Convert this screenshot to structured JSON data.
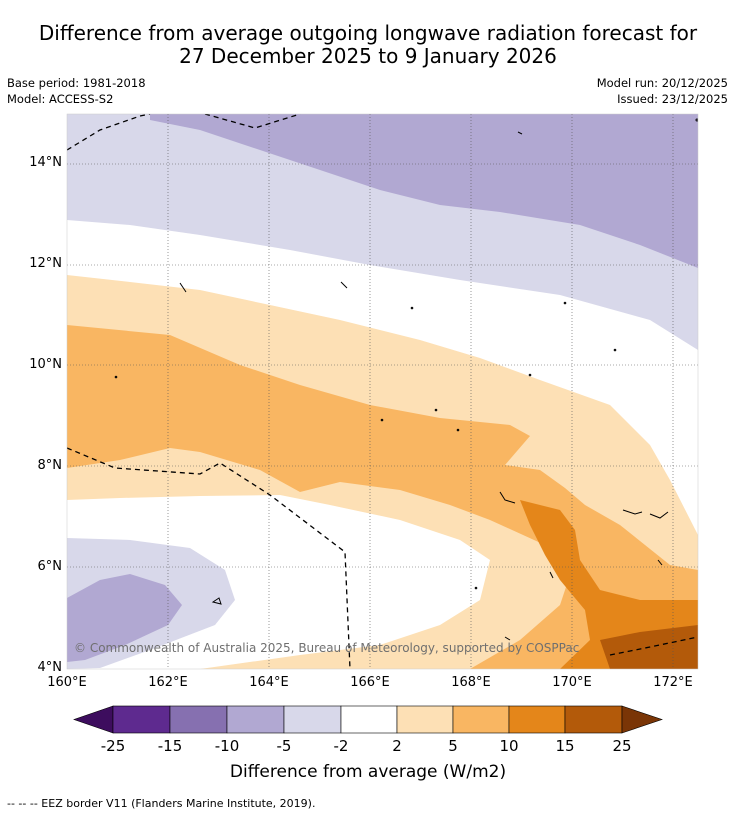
{
  "title_line1": "Difference from average outgoing longwave radiation forecast for",
  "title_line2": "27 December 2025 to 9 January 2026",
  "base_period": "Base period: 1981-2018",
  "model": "Model: ACCESS-S2",
  "model_run": "Model run: 20/12/2025",
  "issued": "Issued: 23/12/2025",
  "map": {
    "lon_range": [
      160,
      172.5
    ],
    "lat_range": [
      4,
      15
    ],
    "lat_labels": [
      "14°N",
      "12°N",
      "10°N",
      "8°N",
      "6°N",
      "4°N"
    ],
    "lon_labels": [
      "160°E",
      "162°E",
      "164°E",
      "166°E",
      "168°E",
      "170°E",
      "172°E"
    ],
    "copyright": "© Commonwealth of Australia 2025, Bureau of Meteorology, supported by COSPPac"
  },
  "colorbar": {
    "ticks": [
      "-25",
      "-15",
      "-10",
      "-5",
      "-2",
      "2",
      "5",
      "10",
      "15",
      "25"
    ],
    "colors": [
      "#3d0d5e",
      "#5e2a8f",
      "#8670b0",
      "#b1a8d2",
      "#d8d8ea",
      "#ffffff",
      "#fde0b5",
      "#f9b662",
      "#e4861a",
      "#b35a0a",
      "#7a3506"
    ],
    "title": "Difference from average (W/m2)"
  },
  "footnote": "--  --  -- EEZ border V11 (Flanders Marine Institute, 2019)."
}
